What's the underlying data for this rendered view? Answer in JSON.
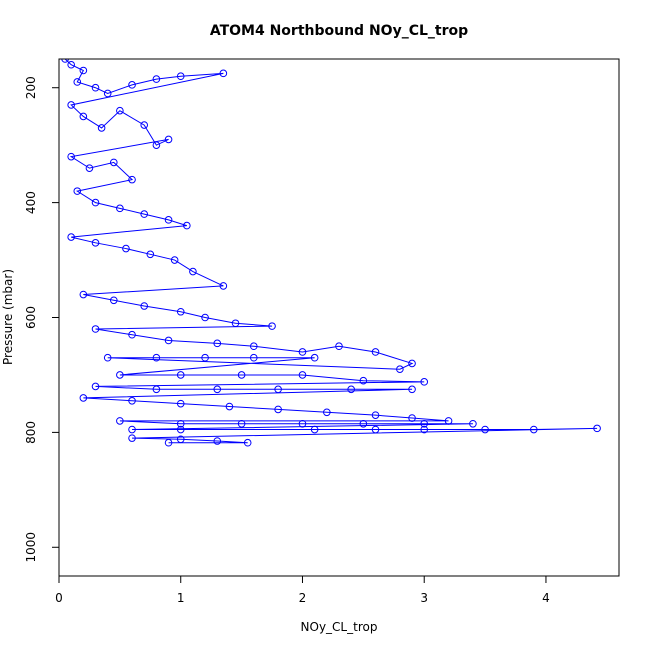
{
  "chart_data": {
    "type": "scatter",
    "title": "ATOM4 Northbound NOy_CL_trop",
    "xlabel": "NOy_CL_trop",
    "ylabel": "Pressure (mbar)",
    "xlim": [
      0,
      4.6
    ],
    "ylim": [
      1050,
      150
    ],
    "y_reversed": true,
    "grid": false,
    "marker": "open-circle",
    "connected": true,
    "color": "#0000ff",
    "x_ticks": [
      0,
      1,
      2,
      3,
      4
    ],
    "y_ticks": [
      200,
      400,
      600,
      800,
      1000
    ],
    "series": [
      {
        "values": [
          [
            0.05,
            150
          ],
          [
            0.1,
            160
          ],
          [
            0.2,
            170
          ],
          [
            0.15,
            190
          ],
          [
            0.3,
            200
          ],
          [
            0.4,
            210
          ],
          [
            0.6,
            195
          ],
          [
            0.8,
            185
          ],
          [
            1.0,
            180
          ],
          [
            1.35,
            175
          ],
          [
            0.1,
            230
          ],
          [
            0.2,
            250
          ],
          [
            0.35,
            270
          ],
          [
            0.5,
            240
          ],
          [
            0.7,
            265
          ],
          [
            0.8,
            300
          ],
          [
            0.9,
            290
          ],
          [
            0.1,
            320
          ],
          [
            0.25,
            340
          ],
          [
            0.45,
            330
          ],
          [
            0.6,
            360
          ],
          [
            0.15,
            380
          ],
          [
            0.3,
            400
          ],
          [
            0.5,
            410
          ],
          [
            0.7,
            420
          ],
          [
            0.9,
            430
          ],
          [
            1.05,
            440
          ],
          [
            0.1,
            460
          ],
          [
            0.3,
            470
          ],
          [
            0.55,
            480
          ],
          [
            0.75,
            490
          ],
          [
            0.95,
            500
          ],
          [
            1.1,
            520
          ],
          [
            1.35,
            545
          ],
          [
            0.2,
            560
          ],
          [
            0.45,
            570
          ],
          [
            0.7,
            580
          ],
          [
            1.0,
            590
          ],
          [
            1.2,
            600
          ],
          [
            1.45,
            610
          ],
          [
            1.75,
            615
          ],
          [
            0.3,
            620
          ],
          [
            0.6,
            630
          ],
          [
            0.9,
            640
          ],
          [
            1.3,
            645
          ],
          [
            1.6,
            650
          ],
          [
            2.0,
            660
          ],
          [
            2.3,
            650
          ],
          [
            2.6,
            660
          ],
          [
            2.9,
            680
          ],
          [
            2.8,
            690
          ],
          [
            0.4,
            670
          ],
          [
            0.8,
            670
          ],
          [
            1.2,
            670
          ],
          [
            1.6,
            670
          ],
          [
            2.1,
            670
          ],
          [
            0.5,
            700
          ],
          [
            1.0,
            700
          ],
          [
            1.5,
            700
          ],
          [
            2.0,
            700
          ],
          [
            2.5,
            710
          ],
          [
            3.0,
            712
          ],
          [
            0.3,
            720
          ],
          [
            0.8,
            725
          ],
          [
            1.3,
            725
          ],
          [
            1.8,
            725
          ],
          [
            2.4,
            725
          ],
          [
            2.9,
            725
          ],
          [
            0.2,
            740
          ],
          [
            0.6,
            745
          ],
          [
            1.0,
            750
          ],
          [
            1.4,
            755
          ],
          [
            1.8,
            760
          ],
          [
            2.2,
            765
          ],
          [
            2.6,
            770
          ],
          [
            2.9,
            775
          ],
          [
            3.2,
            780
          ],
          [
            0.5,
            780
          ],
          [
            1.0,
            785
          ],
          [
            1.5,
            785
          ],
          [
            2.0,
            785
          ],
          [
            2.5,
            785
          ],
          [
            3.0,
            785
          ],
          [
            3.4,
            785
          ],
          [
            0.6,
            795
          ],
          [
            1.0,
            795
          ],
          [
            2.1,
            795
          ],
          [
            2.6,
            795
          ],
          [
            3.0,
            795
          ],
          [
            3.5,
            795
          ],
          [
            3.9,
            795
          ],
          [
            4.42,
            793
          ],
          [
            0.6,
            810
          ],
          [
            1.0,
            812
          ],
          [
            1.3,
            815
          ],
          [
            1.55,
            818
          ],
          [
            0.9,
            818
          ]
        ]
      }
    ]
  }
}
